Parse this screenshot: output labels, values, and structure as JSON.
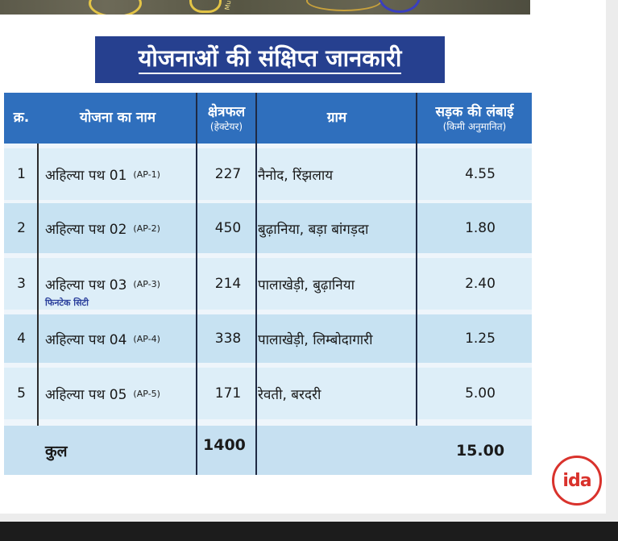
{
  "title": "योजनाओं की संक्षिप्त जानकारी",
  "map": {
    "label": "Mu"
  },
  "table": {
    "headers": {
      "serial": "क्र.",
      "name": "योजना का नाम",
      "area": "क्षेत्रफल",
      "area_unit": "(हेक्टेयर)",
      "village": "ग्राम",
      "road": "सड़क की लंबाई",
      "road_unit": "(किमी अनुमानित)"
    },
    "rows": [
      {
        "serial": "1",
        "name": "अहिल्या पथ 01",
        "code": "(AP-1)",
        "area": "227",
        "village": "नैनोद, रिंझलाय",
        "road": "4.55",
        "note": ""
      },
      {
        "serial": "2",
        "name": "अहिल्या पथ 02",
        "code": "(AP-2)",
        "area": "450",
        "village": "बुढ़ानिया, बड़ा बांगड़दा",
        "road": "1.80",
        "note": ""
      },
      {
        "serial": "3",
        "name": "अहिल्या पथ 03",
        "code": "(AP-3)",
        "area": "214",
        "village": "पालाखेड़ी, बुढ़ानिया",
        "road": "2.40",
        "note": "फिनटेक सिटी"
      },
      {
        "serial": "4",
        "name": "अहिल्या पथ 04",
        "code": "(AP-4)",
        "area": "338",
        "village": "पालाखेड़ी, लिम्बोदागारी",
        "road": "1.25",
        "note": ""
      },
      {
        "serial": "5",
        "name": "अहिल्या पथ 05",
        "code": "(AP-5)",
        "area": "171",
        "village": "रेवती, बरदरी",
        "road": "5.00",
        "note": ""
      }
    ],
    "total": {
      "label": "कुल",
      "area": "1400",
      "road": "15.00"
    }
  },
  "logo": {
    "text": "ida",
    "color": "#d9322c"
  },
  "colors": {
    "title_bg": "#26408f",
    "header_bg": "#2f6fbd",
    "row_light": "#ddeef8",
    "row_dark": "#c7e2f2"
  }
}
